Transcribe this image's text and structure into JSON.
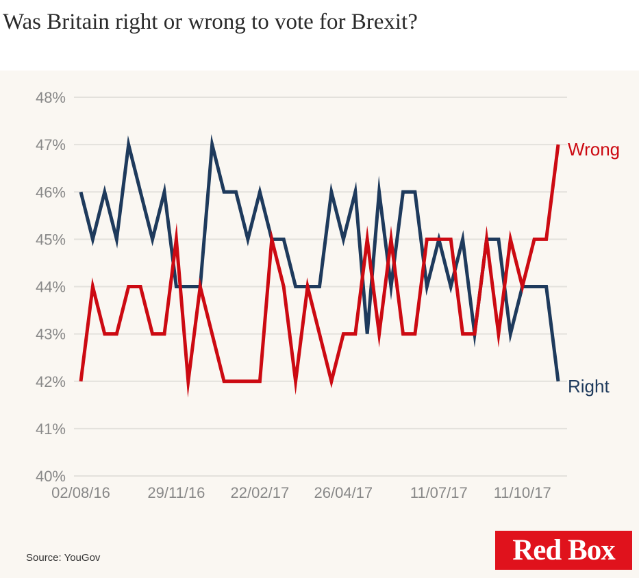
{
  "title": "Was Britain right or wrong to vote for Brexit?",
  "source": "Source: YouGov",
  "logo_text": "Red Box",
  "colors": {
    "right": "#1e3a5c",
    "wrong": "#cc0a12",
    "grid": "#e3e1dc",
    "tick": "#888888",
    "background": "#faf7f2",
    "logo": "#e0121c"
  },
  "chart_data": {
    "type": "line",
    "title": "Was Britain right or wrong to vote for Brexit?",
    "xlabel": "",
    "ylabel": "",
    "ylim": [
      40,
      48
    ],
    "y_ticks": [
      "40%",
      "41%",
      "42%",
      "43%",
      "44%",
      "45%",
      "46%",
      "47%",
      "48%"
    ],
    "x_ticks": [
      {
        "label": "02/08/16",
        "index": 0
      },
      {
        "label": "29/11/16",
        "index": 8
      },
      {
        "label": "22/02/17",
        "index": 15
      },
      {
        "label": "26/04/17",
        "index": 22
      },
      {
        "label": "11/07/17",
        "index": 30
      },
      {
        "label": "11/10/17",
        "index": 37
      }
    ],
    "grid": true,
    "legend": "end-of-line labels",
    "series": [
      {
        "name": "Right",
        "color": "#1e3a5c",
        "values": [
          46,
          45,
          46,
          45,
          47,
          46,
          45,
          46,
          44,
          44,
          44,
          47,
          46,
          46,
          45,
          46,
          45,
          45,
          44,
          44,
          44,
          46,
          45,
          46,
          43,
          46,
          44,
          46,
          46,
          44,
          45,
          44,
          45,
          43,
          45,
          45,
          43,
          44,
          44,
          44,
          42
        ],
        "x_index": [
          0,
          1,
          2,
          3,
          4,
          5,
          6,
          7,
          8,
          9,
          10,
          11,
          12,
          13,
          14,
          15,
          16,
          17,
          18,
          19,
          20,
          21,
          22,
          23,
          24,
          25,
          26,
          27,
          28,
          29,
          30,
          31,
          32,
          33,
          34,
          35,
          36,
          37,
          38,
          39,
          40
        ]
      },
      {
        "name": "Wrong",
        "color": "#cc0a12",
        "values": [
          42,
          44,
          43,
          43,
          44,
          44,
          43,
          43,
          45,
          42,
          44,
          43,
          42,
          42,
          42,
          42,
          45,
          44,
          42,
          44,
          43,
          42,
          43,
          43,
          45,
          43,
          45,
          43,
          43,
          45,
          45,
          45,
          43,
          43,
          45,
          43,
          45,
          44,
          45,
          45,
          47
        ],
        "x_index": [
          0,
          1,
          2,
          3,
          4,
          5,
          6,
          7,
          8,
          9,
          10,
          11,
          12,
          13,
          14,
          15,
          16,
          17,
          18,
          19,
          20,
          21,
          22,
          23,
          24,
          25,
          26,
          27,
          28,
          29,
          30,
          31,
          32,
          33,
          34,
          35,
          36,
          37,
          38,
          39,
          40
        ]
      }
    ]
  }
}
